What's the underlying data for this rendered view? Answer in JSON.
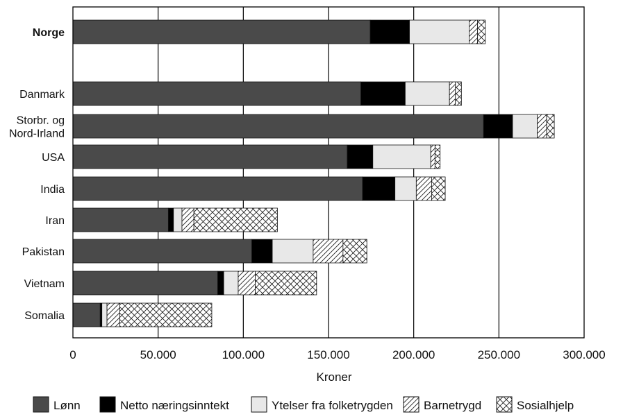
{
  "chart_data": {
    "type": "bar",
    "orientation": "horizontal",
    "stacked": true,
    "title": "",
    "xlabel": "Kroner",
    "ylabel": "",
    "xlim": [
      0,
      300000
    ],
    "grid": true,
    "legend_position": "bottom",
    "x_ticks": [
      0,
      50000,
      100000,
      150000,
      200000,
      250000,
      300000
    ],
    "x_tick_labels": [
      "0",
      "50.000",
      "100.000",
      "150.000",
      "200.000",
      "250.000",
      "300.000"
    ],
    "categories": [
      {
        "label_lines": [
          "Norge"
        ],
        "bold": true
      },
      {
        "label_lines": [
          "Danmark"
        ],
        "bold": false
      },
      {
        "label_lines": [
          "Storbr. og",
          "Nord-Irland"
        ],
        "bold": false
      },
      {
        "label_lines": [
          "USA"
        ],
        "bold": false
      },
      {
        "label_lines": [
          "India"
        ],
        "bold": false
      },
      {
        "label_lines": [
          "Iran"
        ],
        "bold": false
      },
      {
        "label_lines": [
          "Pakistan"
        ],
        "bold": false
      },
      {
        "label_lines": [
          "Vietnam"
        ],
        "bold": false
      },
      {
        "label_lines": [
          "Somalia"
        ],
        "bold": false
      }
    ],
    "series": [
      {
        "name": "Lønn",
        "pattern": "dark",
        "color": "#4a4a4a",
        "values": [
          174500,
          169000,
          241000,
          161000,
          170000,
          56000,
          105000,
          85000,
          16000
        ]
      },
      {
        "name": "Netto næringsinntekt",
        "pattern": "black",
        "color": "#000000",
        "values": [
          23000,
          26000,
          17000,
          15000,
          19000,
          3000,
          12000,
          3500,
          1000
        ]
      },
      {
        "name": "Ytelser fra folketrygden",
        "pattern": "light",
        "color": "#e8e8e8",
        "values": [
          35000,
          26000,
          14500,
          34000,
          12500,
          5000,
          24000,
          8500,
          3000
        ]
      },
      {
        "name": "Barnetrygd",
        "pattern": "diagonal",
        "color": "#ffffff",
        "values": [
          5000,
          3500,
          5500,
          2500,
          9000,
          7000,
          17500,
          10000,
          7500
        ]
      },
      {
        "name": "Sosialhjelp",
        "pattern": "crosshatch",
        "color": "#ffffff",
        "values": [
          4500,
          3500,
          4500,
          3000,
          8000,
          49000,
          14000,
          36000,
          54000
        ]
      }
    ]
  }
}
